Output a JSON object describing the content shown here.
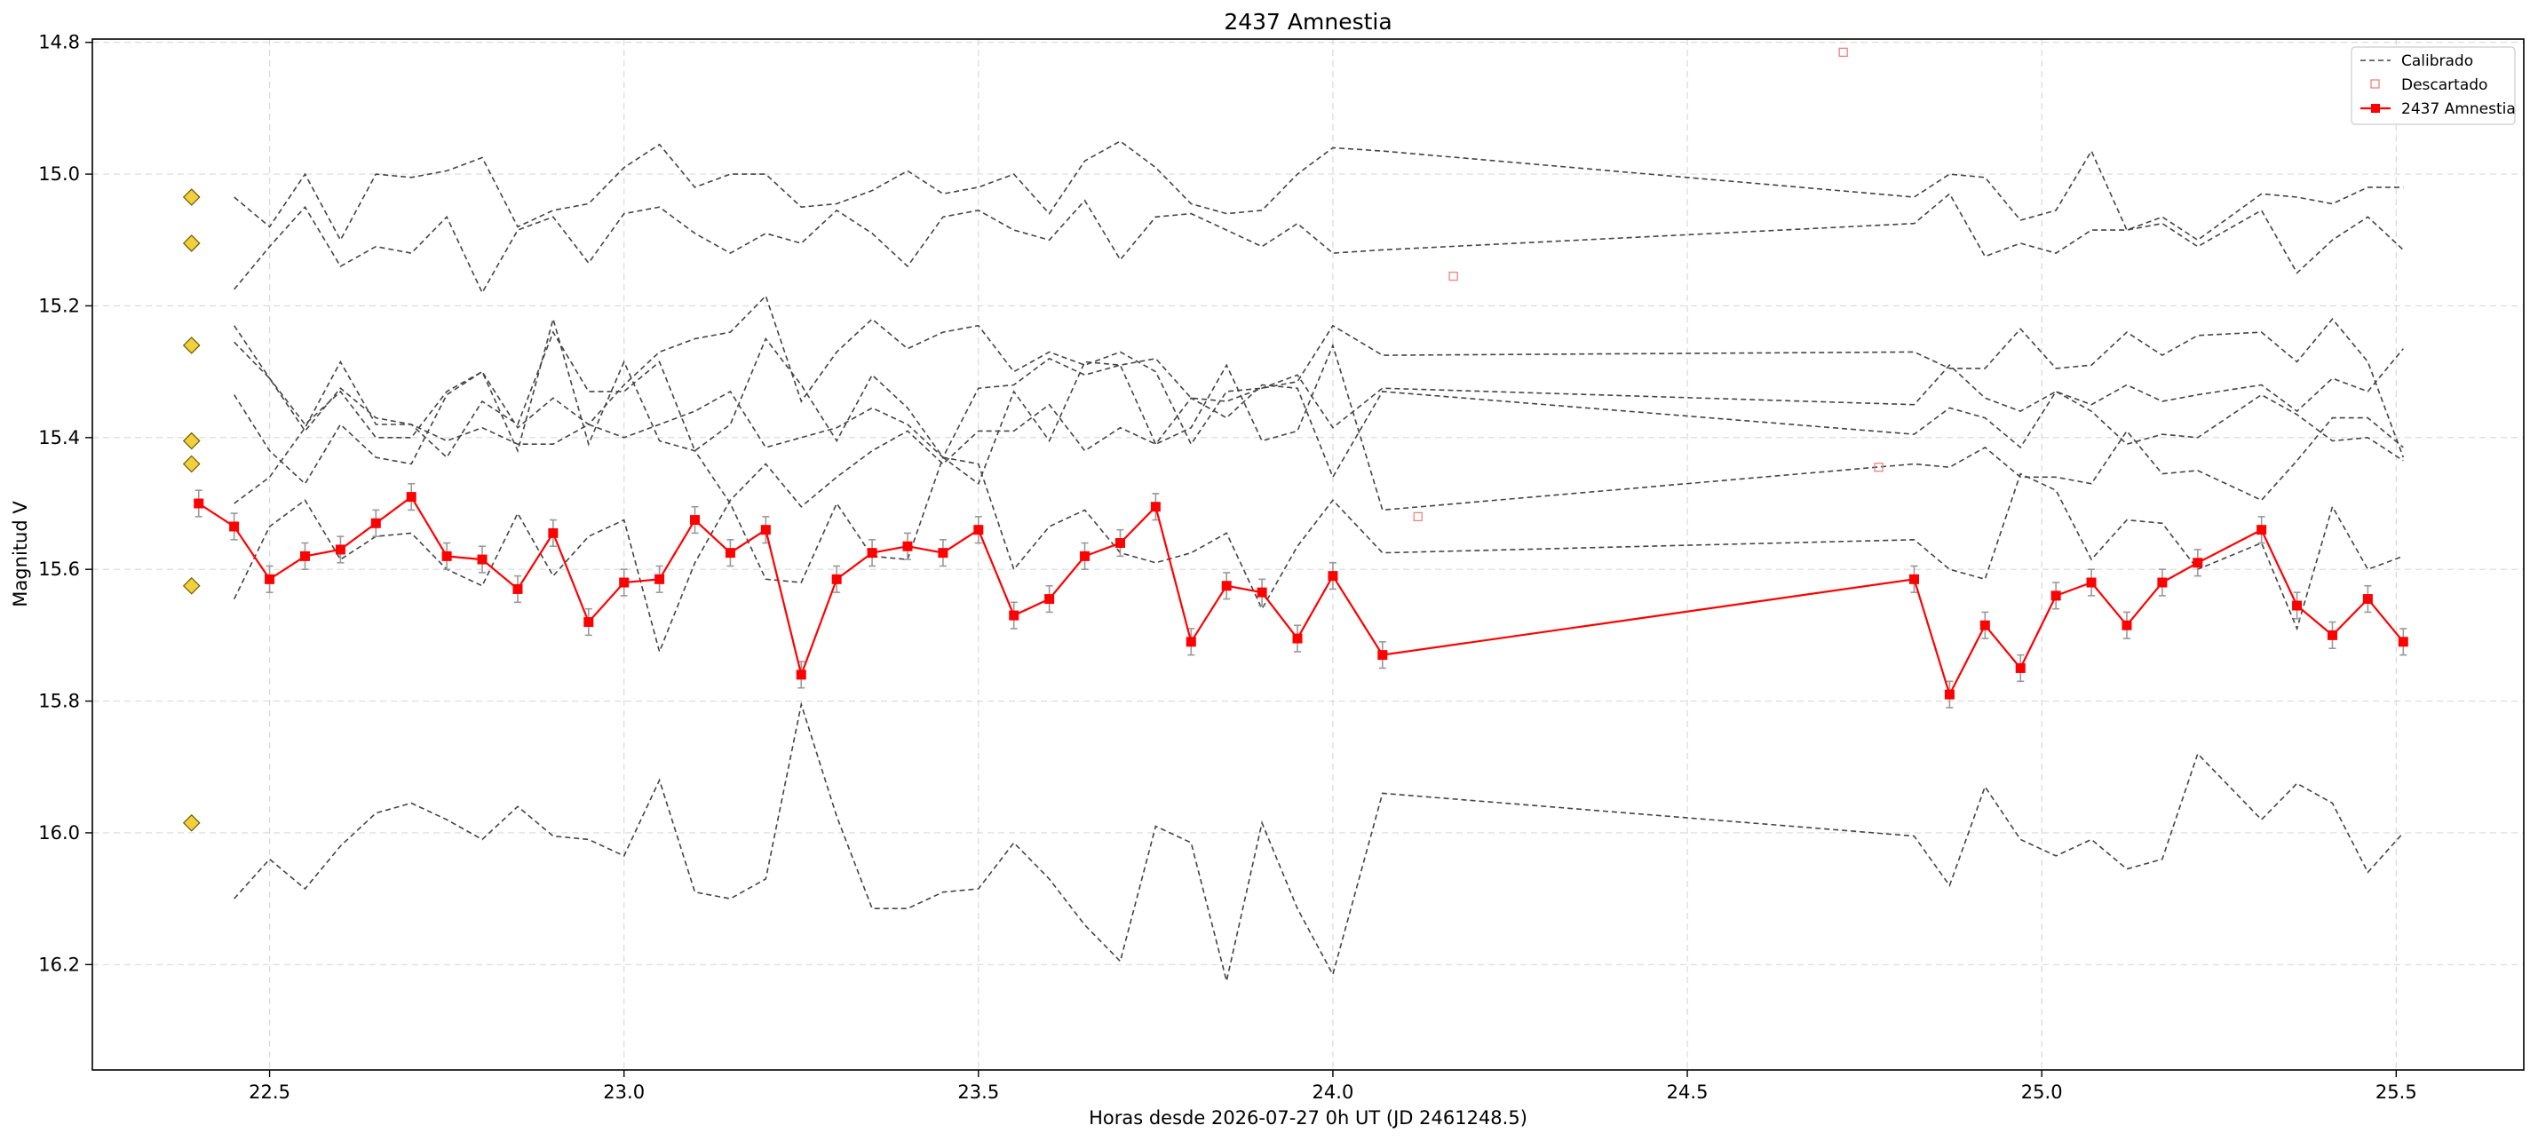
{
  "chart_data": {
    "type": "line",
    "title": "2437 Amnestia",
    "xlabel": "Horas desde 2026-07-27 0h UT (JD 2461248.5)",
    "ylabel": "Magnitud V",
    "xlim": [
      22.25,
      25.68
    ],
    "ylim": [
      16.36,
      14.795
    ],
    "y_inverted": true,
    "grid": true,
    "legend_position": "top-right",
    "xticks": [
      22.5,
      23.0,
      23.5,
      24.0,
      24.5,
      25.0,
      25.5
    ],
    "xtick_labels": [
      "22.5",
      "23.0",
      "23.5",
      "24.0",
      "24.5",
      "25.0",
      "25.5"
    ],
    "yticks": [
      14.8,
      15.0,
      15.2,
      15.4,
      15.6,
      15.8,
      16.0,
      16.2
    ],
    "ytick_labels": [
      "14.8",
      "15.0",
      "15.2",
      "15.4",
      "15.6",
      "15.8",
      "16.0",
      "16.2"
    ],
    "legend": [
      "Calibrado",
      "Descartado",
      "2437 Amnestia"
    ],
    "x": [
      22.45,
      22.5,
      22.55,
      22.6,
      22.65,
      22.7,
      22.75,
      22.8,
      22.85,
      22.9,
      22.95,
      23.0,
      23.05,
      23.1,
      23.15,
      23.2,
      23.25,
      23.3,
      23.35,
      23.4,
      23.45,
      23.5,
      23.55,
      23.6,
      23.65,
      23.7,
      23.75,
      23.8,
      23.85,
      23.9,
      23.95,
      24.0,
      24.07,
      24.82,
      24.87,
      24.92,
      24.97,
      25.02,
      25.07,
      25.12,
      25.17,
      25.22,
      25.31,
      25.36,
      25.41,
      25.46,
      25.51
    ],
    "calibrated_series": [
      [
        15.035,
        15.08,
        15.0,
        15.1,
        15.0,
        15.005,
        14.995,
        14.975,
        15.08,
        15.055,
        15.045,
        14.99,
        14.955,
        15.02,
        15.0,
        15.0,
        15.05,
        15.045,
        15.025,
        14.995,
        15.03,
        15.02,
        15.0,
        15.06,
        14.98,
        14.95,
        14.99,
        15.045,
        15.06,
        15.055,
        15.0,
        14.96,
        14.965,
        15.035,
        15.0,
        15.005,
        15.07,
        15.055,
        14.965,
        15.085,
        15.065,
        15.1,
        15.03,
        15.035,
        15.045,
        15.02,
        15.02
      ],
      [
        15.175,
        15.11,
        15.05,
        15.14,
        15.11,
        15.12,
        15.065,
        15.18,
        15.085,
        15.065,
        15.135,
        15.06,
        15.05,
        15.09,
        15.12,
        15.09,
        15.105,
        15.055,
        15.09,
        15.14,
        15.065,
        15.055,
        15.085,
        15.1,
        15.04,
        15.13,
        15.065,
        15.06,
        15.085,
        15.11,
        15.075,
        15.12,
        15.115,
        15.075,
        15.03,
        15.125,
        15.105,
        15.12,
        15.085,
        15.085,
        15.075,
        15.11,
        15.055,
        15.15,
        15.1,
        15.065,
        15.115
      ],
      [
        15.23,
        15.31,
        15.38,
        15.33,
        15.4,
        15.4,
        15.33,
        15.3,
        15.385,
        15.34,
        15.38,
        15.32,
        15.27,
        15.25,
        15.24,
        15.185,
        15.345,
        15.27,
        15.22,
        15.265,
        15.24,
        15.23,
        15.3,
        15.27,
        15.29,
        15.27,
        15.3,
        15.41,
        15.33,
        15.325,
        15.315,
        15.23,
        15.275,
        15.27,
        15.295,
        15.295,
        15.235,
        15.295,
        15.29,
        15.24,
        15.275,
        15.245,
        15.24,
        15.285,
        15.22,
        15.285,
        15.43
      ],
      [
        15.255,
        15.31,
        15.39,
        15.325,
        15.37,
        15.38,
        15.405,
        15.385,
        15.41,
        15.41,
        15.38,
        15.4,
        15.38,
        15.36,
        15.33,
        15.415,
        15.4,
        15.385,
        15.355,
        15.38,
        15.43,
        15.325,
        15.32,
        15.28,
        15.305,
        15.29,
        15.28,
        15.34,
        15.345,
        15.325,
        15.305,
        15.385,
        15.325,
        15.35,
        15.29,
        15.34,
        15.36,
        15.33,
        15.35,
        15.32,
        15.345,
        15.335,
        15.32,
        15.36,
        15.31,
        15.33,
        15.265
      ],
      [
        15.335,
        15.42,
        15.47,
        15.38,
        15.43,
        15.44,
        15.335,
        15.3,
        15.42,
        15.22,
        15.41,
        15.285,
        15.405,
        15.42,
        15.5,
        15.615,
        15.62,
        15.5,
        15.58,
        15.585,
        15.43,
        15.47,
        15.33,
        15.405,
        15.285,
        15.29,
        15.41,
        15.34,
        15.37,
        15.32,
        15.325,
        15.46,
        15.33,
        15.395,
        15.355,
        15.37,
        15.415,
        15.33,
        15.36,
        15.41,
        15.395,
        15.4,
        15.335,
        15.365,
        15.405,
        15.4,
        15.435
      ],
      [
        15.645,
        15.535,
        15.495,
        15.585,
        15.55,
        15.545,
        15.6,
        15.625,
        15.515,
        15.61,
        15.55,
        15.525,
        15.725,
        15.59,
        15.495,
        15.44,
        15.505,
        15.46,
        15.42,
        15.39,
        15.44,
        15.39,
        15.39,
        15.35,
        15.42,
        15.385,
        15.41,
        15.385,
        15.29,
        15.405,
        15.39,
        15.26,
        15.51,
        15.44,
        15.445,
        15.415,
        15.46,
        15.46,
        15.47,
        15.39,
        15.455,
        15.45,
        15.495,
        15.435,
        15.37,
        15.37,
        15.415
      ],
      [
        15.5,
        15.46,
        15.385,
        15.285,
        15.38,
        15.38,
        15.43,
        15.345,
        15.38,
        15.24,
        15.33,
        15.33,
        15.285,
        15.42,
        15.38,
        15.25,
        15.32,
        15.405,
        15.305,
        15.355,
        15.43,
        15.44,
        15.6,
        15.535,
        15.51,
        15.575,
        15.59,
        15.575,
        15.545,
        15.66,
        15.565,
        15.495,
        15.575,
        15.555,
        15.6,
        15.615,
        15.455,
        15.48,
        15.585,
        15.525,
        15.53,
        15.6,
        15.56,
        15.69,
        15.505,
        15.6,
        15.58
      ],
      [
        16.1,
        16.04,
        16.085,
        16.02,
        15.97,
        15.955,
        15.98,
        16.01,
        15.96,
        16.005,
        16.01,
        16.035,
        15.92,
        16.09,
        16.1,
        16.07,
        15.805,
        15.975,
        16.115,
        16.115,
        16.09,
        16.085,
        16.015,
        16.07,
        16.14,
        16.195,
        15.99,
        16.015,
        16.225,
        15.985,
        16.115,
        16.215,
        15.94,
        16.005,
        16.08,
        15.93,
        16.01,
        16.035,
        16.01,
        16.055,
        16.04,
        15.88,
        15.98,
        15.925,
        15.955,
        16.06,
        16.0
      ]
    ],
    "reference_x": 22.39,
    "reference_stars": [
      15.035,
      15.105,
      15.26,
      15.405,
      15.44,
      15.625,
      15.985
    ],
    "discarded": [
      {
        "x": 24.17,
        "y": 15.155
      },
      {
        "x": 24.12,
        "y": 15.52
      },
      {
        "x": 24.77,
        "y": 15.445
      },
      {
        "x": 24.72,
        "y": 14.815
      }
    ],
    "series": [
      {
        "name": "2437 Amnestia",
        "x": [
          22.4,
          22.45,
          22.5,
          22.55,
          22.6,
          22.65,
          22.7,
          22.75,
          22.8,
          22.85,
          22.9,
          22.95,
          23.0,
          23.05,
          23.1,
          23.15,
          23.2,
          23.25,
          23.3,
          23.35,
          23.4,
          23.45,
          23.5,
          23.55,
          23.6,
          23.65,
          23.7,
          23.75,
          23.8,
          23.85,
          23.9,
          23.95,
          24.0,
          24.07,
          24.82,
          24.87,
          24.92,
          24.97,
          25.02,
          25.07,
          25.12,
          25.17,
          25.22,
          25.31,
          25.36,
          25.41,
          25.46,
          25.51
        ],
        "values": [
          15.5,
          15.535,
          15.615,
          15.58,
          15.57,
          15.53,
          15.49,
          15.58,
          15.585,
          15.63,
          15.545,
          15.68,
          15.62,
          15.615,
          15.525,
          15.575,
          15.54,
          15.76,
          15.615,
          15.575,
          15.565,
          15.575,
          15.54,
          15.67,
          15.645,
          15.58,
          15.56,
          15.505,
          15.71,
          15.625,
          15.635,
          15.705,
          15.61,
          15.73,
          15.615,
          15.79,
          15.685,
          15.75,
          15.64,
          15.62,
          15.685,
          15.62,
          15.59,
          15.54,
          15.655,
          15.7,
          15.645,
          15.71
        ],
        "error": 0.02
      }
    ]
  },
  "colors": {
    "calibrated": "#444444",
    "discarded": "#f08080",
    "target": "#ff0000",
    "reference_fill": "#f2d03b",
    "reference_edge": "#6b5a00",
    "grid": "#d9d9d9",
    "errorbar": "#999999"
  }
}
